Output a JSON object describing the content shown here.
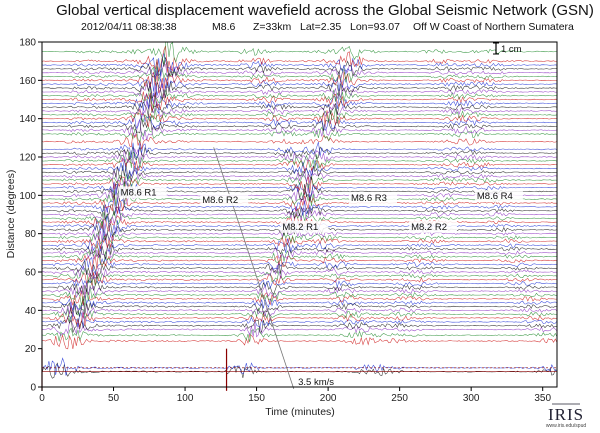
{
  "chart_data": {
    "type": "line",
    "title": "Global vertical displacement wavefield across the Global Seismic Network (GSN)",
    "subtitle": {
      "date": "2012/04/11 08:38:38",
      "magnitude": "M8.6",
      "depth": "Z=33km",
      "lat": "Lat=2.35",
      "lon": "Lon=93.07",
      "region": "Off W Coast of Northern Sumatera"
    },
    "xlabel": "Time (minutes)",
    "ylabel": "Distance (degrees)",
    "xlim": [
      0,
      360
    ],
    "ylim": [
      0,
      180
    ],
    "xticks": [
      0,
      50,
      100,
      150,
      200,
      250,
      300,
      350
    ],
    "yticks": [
      0,
      20,
      40,
      60,
      80,
      100,
      120,
      140,
      160,
      180
    ],
    "scale_bar_label": "1 cm",
    "grid": false,
    "phase_labels": [
      {
        "text": "M8.6  R1",
        "x": 55,
        "y": 100
      },
      {
        "text": "M8.6  R2",
        "x": 112,
        "y": 96
      },
      {
        "text": "M8.2  R1",
        "x": 168,
        "y": 82
      },
      {
        "text": "M8.6  R3",
        "x": 216,
        "y": 97
      },
      {
        "text": "M8.2  R2",
        "x": 258,
        "y": 82
      },
      {
        "text": "M8.6  R4",
        "x": 304,
        "y": 98
      }
    ],
    "velocity_label": {
      "text": "3.5 km/s",
      "x": 200,
      "y": -1
    },
    "event_marker_times": [
      0,
      129
    ],
    "stations_y": [
      8,
      10,
      24,
      27,
      30,
      32,
      34,
      36,
      38,
      40,
      42,
      44,
      46,
      48,
      50,
      52,
      54,
      56,
      58,
      60,
      62,
      64,
      66,
      68,
      70,
      72,
      74,
      76,
      78,
      80,
      82,
      84,
      86,
      88,
      90,
      92,
      94,
      96,
      98,
      100,
      102,
      104,
      106,
      108,
      110,
      112,
      114,
      116,
      118,
      120,
      122,
      124,
      128,
      132,
      134,
      136,
      138,
      140,
      142,
      144,
      146,
      148,
      150,
      152,
      154,
      156,
      158,
      160,
      162,
      164,
      166,
      168,
      170,
      175
    ],
    "trace_colors": [
      "#111111",
      "#1b2fd6",
      "#cc1414",
      "#1f8a2a",
      "#8a2dbf"
    ]
  },
  "logo": {
    "name": "IRIS",
    "url": "www.iris.edu/spud"
  }
}
